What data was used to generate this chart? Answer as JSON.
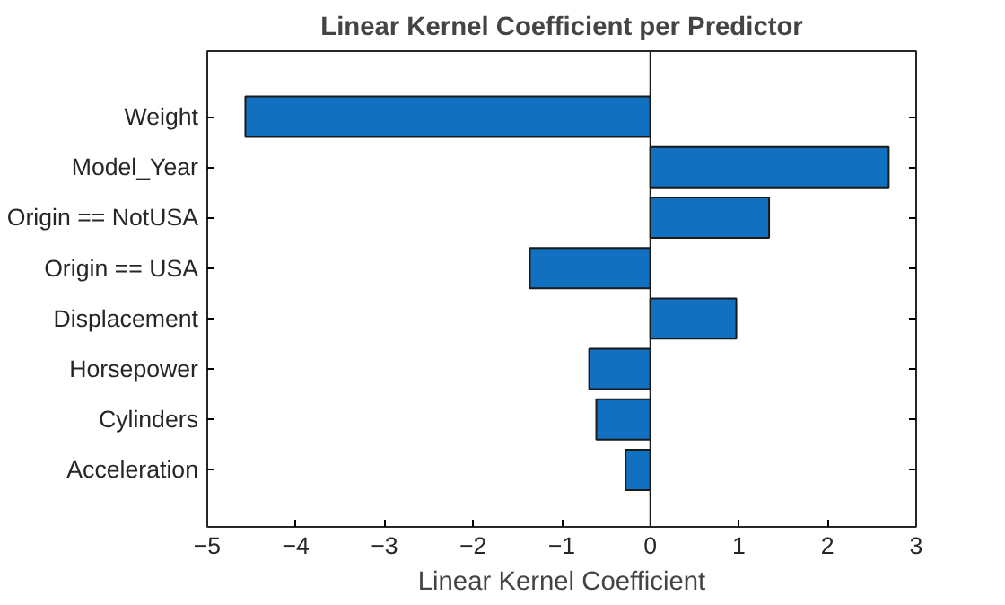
{
  "chart_data": {
    "type": "bar",
    "orientation": "horizontal",
    "title": "Linear Kernel Coefficient per Predictor",
    "xlabel": "Linear Kernel Coefficient",
    "categories": [
      "Weight",
      "Model_Year",
      "Origin == NotUSA",
      "Origin == USA",
      "Displacement",
      "Horsepower",
      "Cylinders",
      "Acceleration"
    ],
    "values": [
      -4.57,
      2.69,
      1.34,
      -1.36,
      0.97,
      -0.69,
      -0.61,
      -0.28
    ],
    "color": "#1170bf",
    "xlim": [
      -5,
      3
    ],
    "xticks": [
      -5,
      -4,
      -3,
      -2,
      -1,
      0,
      1,
      2,
      3
    ],
    "ref_lines": [
      {
        "axis": "x",
        "value": 0,
        "color": "#1a1a1a"
      }
    ]
  }
}
